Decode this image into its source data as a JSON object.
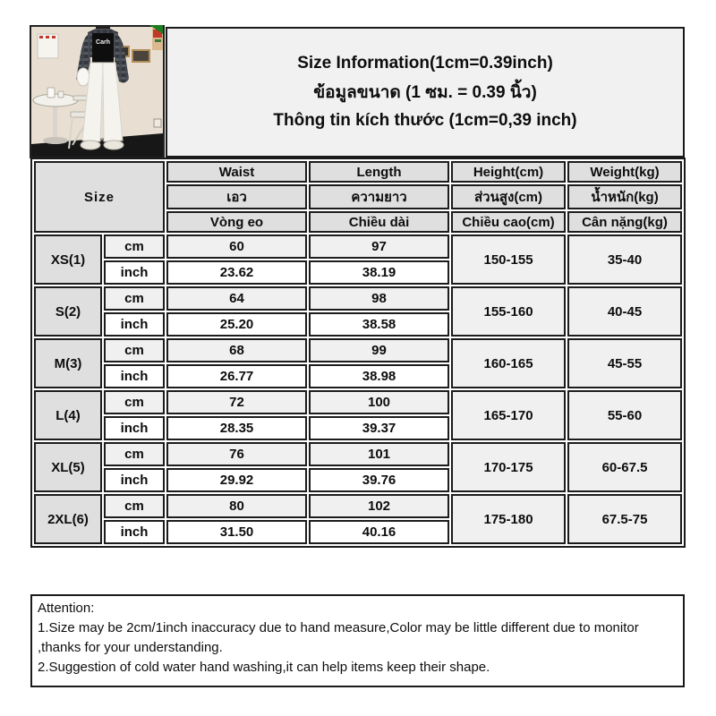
{
  "title": {
    "en": "Size Information(1cm=0.39inch)",
    "th": "ข้อมูลขนาด (1 ซม. = 0.39 นิ้ว)",
    "vi": "Thông tin kích thước (1cm=0,39 inch)"
  },
  "photo": {
    "shirt_text": "Carh"
  },
  "table": {
    "size_header": "Size",
    "columns": [
      {
        "en": "Waist",
        "th": "เอว",
        "vi": "Vòng eo"
      },
      {
        "en": "Length",
        "th": "ความยาว",
        "vi": "Chiều dài"
      },
      {
        "en": "Height(cm)",
        "th": "ส่วนสูง(cm)",
        "vi": "Chiều cao(cm)"
      },
      {
        "en": "Weight(kg)",
        "th": "น้ำหนัก(kg)",
        "vi": "Cân nặng(kg)"
      }
    ],
    "units": {
      "cm": "cm",
      "inch": "inch"
    },
    "rows": [
      {
        "size": "XS(1)",
        "cm": {
          "waist": "60",
          "length": "97"
        },
        "inch": {
          "waist": "23.62",
          "length": "38.19"
        },
        "height": "150-155",
        "weight": "35-40"
      },
      {
        "size": "S(2)",
        "cm": {
          "waist": "64",
          "length": "98"
        },
        "inch": {
          "waist": "25.20",
          "length": "38.58"
        },
        "height": "155-160",
        "weight": "40-45"
      },
      {
        "size": "M(3)",
        "cm": {
          "waist": "68",
          "length": "99"
        },
        "inch": {
          "waist": "26.77",
          "length": "38.98"
        },
        "height": "160-165",
        "weight": "45-55"
      },
      {
        "size": "L(4)",
        "cm": {
          "waist": "72",
          "length": "100"
        },
        "inch": {
          "waist": "28.35",
          "length": "39.37"
        },
        "height": "165-170",
        "weight": "55-60"
      },
      {
        "size": "XL(5)",
        "cm": {
          "waist": "76",
          "length": "101"
        },
        "inch": {
          "waist": "29.92",
          "length": "39.76"
        },
        "height": "170-175",
        "weight": "60-67.5"
      },
      {
        "size": "2XL(6)",
        "cm": {
          "waist": "80",
          "length": "102"
        },
        "inch": {
          "waist": "31.50",
          "length": "40.16"
        },
        "height": "175-180",
        "weight": "67.5-75"
      }
    ]
  },
  "attention": {
    "heading": "Attention:",
    "note1": "1.Size may be 2cm/1inch inaccuracy due to hand measure,Color may be little different due to monitor ,thanks for your understanding.",
    "note2": "2.Suggestion of cold water hand washing,it can help items keep their shape."
  },
  "colors": {
    "border": "#1a1a1a",
    "header_gray": "#dfdfdf",
    "row_gray": "#f0f0f0",
    "title_bg": "#f1f1f1",
    "corner_green": "#1e7d1e"
  }
}
